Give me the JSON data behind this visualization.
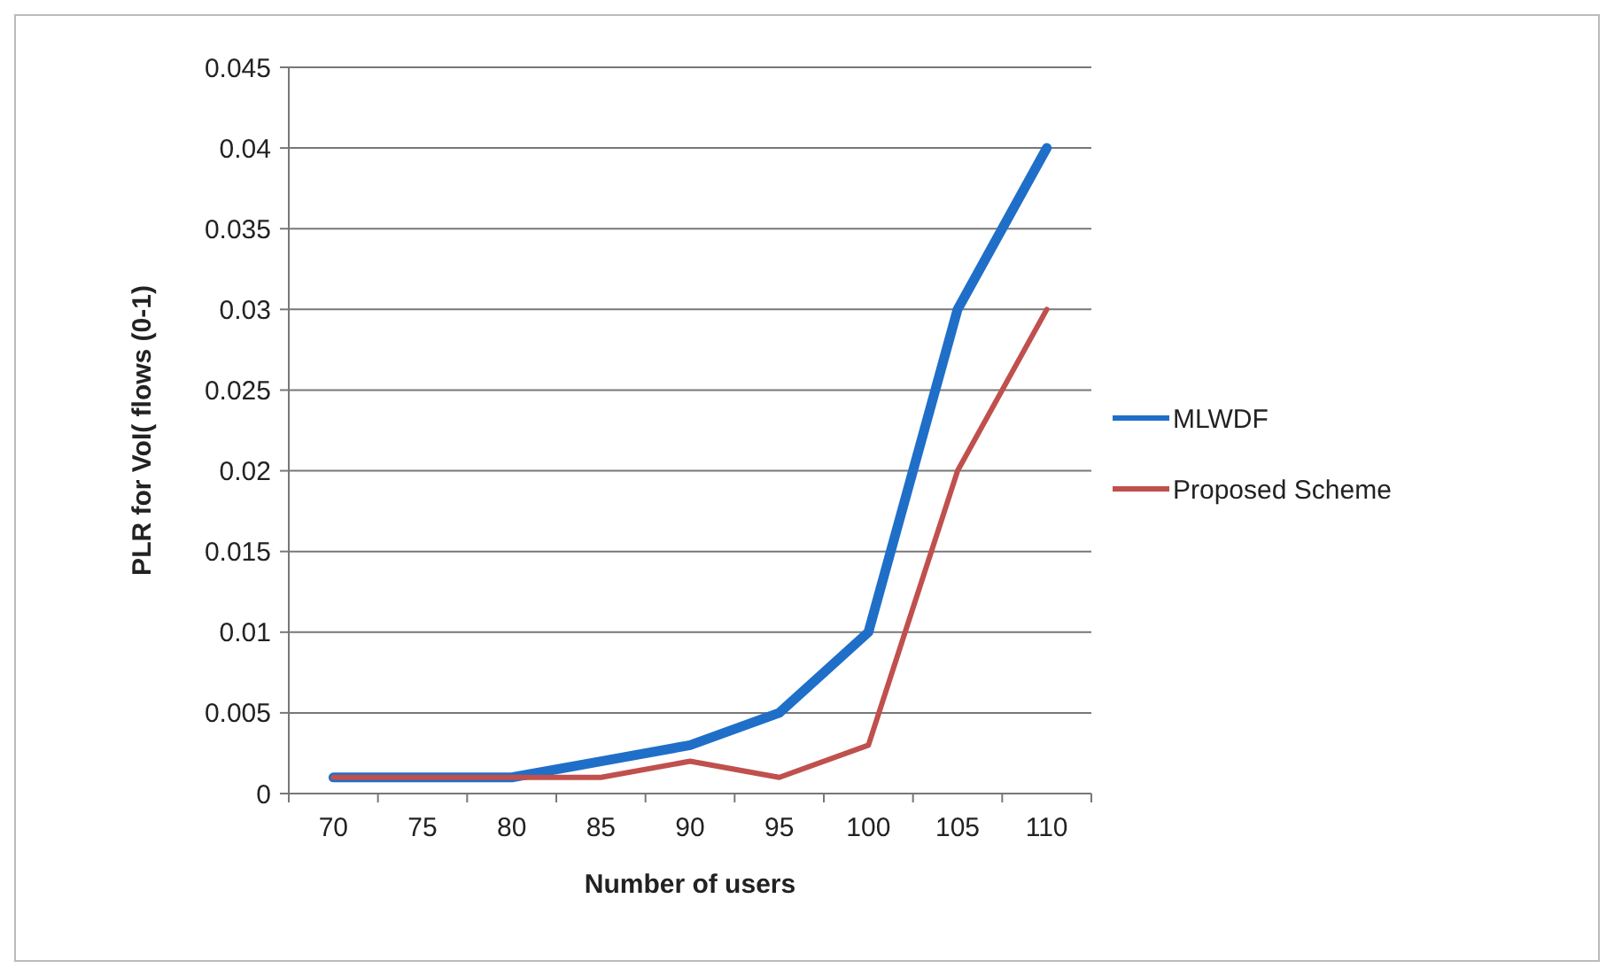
{
  "chart_data": {
    "type": "line",
    "xlabel": "Number of users",
    "ylabel": "PLR for VoI( flows (0-1)",
    "categories": [
      "70",
      "75",
      "80",
      "85",
      "90",
      "95",
      "100",
      "105",
      "110"
    ],
    "series": [
      {
        "name": "MLWDF",
        "color": "#1f6fc9",
        "values": [
          0.001,
          0.001,
          0.001,
          0.002,
          0.003,
          0.005,
          0.01,
          0.03,
          0.04
        ]
      },
      {
        "name": "Proposed Scheme",
        "color": "#c0504d",
        "values": [
          0.001,
          0.001,
          0.001,
          0.001,
          0.002,
          0.001,
          0.003,
          0.02,
          0.03
        ]
      }
    ],
    "ylim": [
      0,
      0.045
    ],
    "yticks": [
      0,
      0.005,
      0.01,
      0.015,
      0.02,
      0.025,
      0.03,
      0.035,
      0.04,
      0.045
    ],
    "grid": "y",
    "legend": "right",
    "marker": "none",
    "line_style": "solid"
  }
}
